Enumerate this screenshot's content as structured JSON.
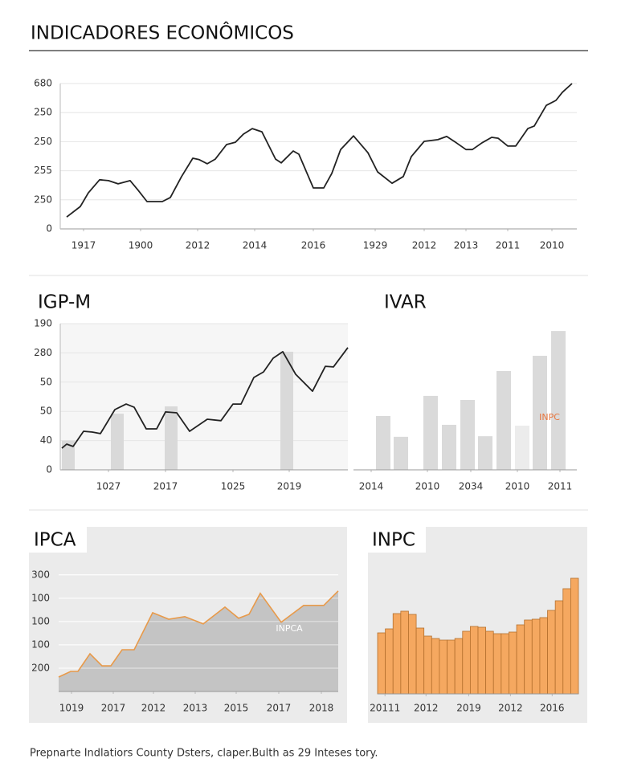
{
  "header": {
    "title": "INDICADORES ECONÔMICOS"
  },
  "footer": {
    "text": "Prepnarte Indlatiors County Dsters, claper.Bulth as 29 Inteses tory."
  },
  "chart_data": [
    {
      "type": "line",
      "color": "#222222",
      "grid": true,
      "x": [
        0.8,
        2.5,
        3.5,
        4.9,
        6,
        7.2,
        8.7,
        9.7,
        10.8,
        12.7,
        13.7,
        15.1,
        16.5,
        17.3,
        18.3,
        19.3,
        20.7,
        21.8,
        22.8,
        23.9,
        25.1,
        26.8,
        27.5,
        29,
        29.7,
        31.5,
        32.8,
        33.8,
        34.9,
        36.5,
        38.3,
        39.5,
        41.3,
        42.7,
        43.7,
        45.3,
        47,
        48.1,
        49.3,
        50.5,
        51.3,
        52.5,
        53.7,
        54.5,
        55.7,
        56.7,
        58.2,
        59,
        60.5,
        61.7,
        62.5,
        63.7
      ],
      "values": [
        0.41,
        0.77,
        1.24,
        1.69,
        1.66,
        1.55,
        1.66,
        1.33,
        0.94,
        0.94,
        1.08,
        1.8,
        2.43,
        2.38,
        2.24,
        2.4,
        2.9,
        2.98,
        3.26,
        3.45,
        3.34,
        2.4,
        2.27,
        2.68,
        2.57,
        1.41,
        1.41,
        1.91,
        2.73,
        3.2,
        2.62,
        1.96,
        1.57,
        1.8,
        2.49,
        3.01,
        3.07,
        3.18,
        2.96,
        2.73,
        2.73,
        2.96,
        3.15,
        3.12,
        2.85,
        2.85,
        3.45,
        3.54,
        4.25,
        4.42,
        4.7,
        5.0
      ],
      "xlim": [
        0,
        64.3
      ],
      "ylim": [
        0,
        5
      ],
      "xticks": [
        {
          "value": 2.9,
          "label": "1917"
        },
        {
          "value": 10,
          "label": "1900"
        },
        {
          "value": 17.1,
          "label": "2012"
        },
        {
          "value": 24.2,
          "label": "2014"
        },
        {
          "value": 31.5,
          "label": "2016"
        },
        {
          "value": 39.2,
          "label": "1929"
        },
        {
          "value": 45.3,
          "label": "2012"
        },
        {
          "value": 50.5,
          "label": "2013"
        },
        {
          "value": 55.7,
          "label": "2011"
        },
        {
          "value": 61.2,
          "label": "2010"
        }
      ],
      "yticks": [
        {
          "value": 0,
          "label": "0"
        },
        {
          "value": 1,
          "label": "250"
        },
        {
          "value": 2,
          "label": "255"
        },
        {
          "value": 3,
          "label": "250"
        },
        {
          "value": 4,
          "label": "250"
        },
        {
          "value": 5,
          "label": "680"
        }
      ]
    },
    {
      "type": "line",
      "title": "IGP-M",
      "color": "#222222",
      "grid": true,
      "x": [
        0.2,
        0.8,
        1.6,
        2.9,
        4,
        5,
        6.8,
        8.2,
        9.2,
        10.7,
        12,
        13.1,
        14.5,
        16.1,
        18.3,
        20,
        21.5,
        22.5,
        24.1,
        25.3,
        26.5,
        27.7,
        29.3,
        31.4,
        33,
        34,
        35.8
      ],
      "values": [
        0.74,
        0.88,
        0.8,
        1.32,
        1.29,
        1.24,
        2.06,
        2.25,
        2.14,
        1.4,
        1.4,
        1.98,
        1.95,
        1.32,
        1.73,
        1.68,
        2.25,
        2.25,
        3.16,
        3.35,
        3.82,
        4.04,
        3.27,
        2.69,
        3.54,
        3.52,
        4.18
      ],
      "bars": {
        "color": "#d9d9d9",
        "x": [
          1,
          7.1,
          13.8,
          28.2
        ],
        "values": [
          1.0,
          1.92,
          2.17,
          4.04
        ]
      },
      "xlim": [
        0,
        35.8
      ],
      "ylim": [
        0,
        5
      ],
      "xticks": [
        {
          "value": 6,
          "label": "1027"
        },
        {
          "value": 13.1,
          "label": "2017"
        },
        {
          "value": 21.5,
          "label": "1025"
        },
        {
          "value": 28.5,
          "label": "2019"
        }
      ],
      "yticks": [
        {
          "value": 0,
          "label": "0"
        },
        {
          "value": 1,
          "label": "40"
        },
        {
          "value": 2,
          "label": "50"
        },
        {
          "value": 3,
          "label": "50"
        },
        {
          "value": 4,
          "label": "280"
        },
        {
          "value": 5,
          "label": "190"
        }
      ]
    },
    {
      "type": "bar",
      "title": "IVAR",
      "annotation": "INPC",
      "annotation_color": "#e8743b",
      "x": [
        3.7,
        5.9,
        9.6,
        11.9,
        14.2,
        16.4,
        18.7,
        21,
        23.2,
        25.5
      ],
      "values": [
        1.84,
        1.13,
        2.53,
        1.54,
        2.39,
        1.15,
        3.38,
        1.51,
        3.9,
        4.75
      ],
      "colors": [
        "#dadada",
        "#dadada",
        "#dadada",
        "#dadada",
        "#dadada",
        "#dadada",
        "#dadada",
        "#ececec",
        "#dadada",
        "#dadada"
      ],
      "xlim": [
        0,
        27.8
      ],
      "ylim": [
        0,
        5
      ],
      "xticks": [
        {
          "value": 2.2,
          "label": "2014"
        },
        {
          "value": 9.2,
          "label": "2010"
        },
        {
          "value": 14.6,
          "label": "2034"
        },
        {
          "value": 20.4,
          "label": "2010"
        },
        {
          "value": 25.7,
          "label": "2011"
        }
      ]
    },
    {
      "type": "area",
      "title": "IPCA",
      "color": "#e89a4a",
      "fill": "#c4c4c4",
      "grid": true,
      "annotation": "INPCA",
      "annotation_color": "#ffffff",
      "x": [
        0,
        1.5,
        2.4,
        3.9,
        5.4,
        6.5,
        7.9,
        9.4,
        11.7,
        13.7,
        15.7,
        18,
        20.7,
        22.4,
        23.7,
        25.1,
        27.7,
        30.5,
        33,
        34.8
      ],
      "values": [
        0.62,
        0.86,
        0.86,
        1.62,
        1.1,
        1.1,
        1.79,
        1.79,
        3.38,
        3.1,
        3.21,
        2.9,
        3.62,
        3.14,
        3.31,
        4.21,
        2.97,
        3.69,
        3.69,
        4.31
      ],
      "xlim": [
        0,
        34.8
      ],
      "ylim": [
        0,
        5.2
      ],
      "xticks": [
        {
          "value": 1.6,
          "label": "1019"
        },
        {
          "value": 6.8,
          "label": "2017"
        },
        {
          "value": 11.8,
          "label": "2012"
        },
        {
          "value": 17,
          "label": "2013"
        },
        {
          "value": 22.1,
          "label": "2015"
        },
        {
          "value": 27.4,
          "label": "2017"
        },
        {
          "value": 32.7,
          "label": "2018"
        }
      ],
      "yticks": [
        {
          "value": 1,
          "label": "200"
        },
        {
          "value": 2,
          "label": "100"
        },
        {
          "value": 3,
          "label": "100"
        },
        {
          "value": 4,
          "label": "100"
        },
        {
          "value": 5,
          "label": "300"
        }
      ]
    },
    {
      "type": "bar",
      "title": "INPC",
      "color": "#f5a860",
      "x": [
        0.5,
        1.5,
        2.5,
        3.5,
        4.5,
        5.5,
        6.5,
        7.5,
        8.5,
        9.5,
        10.5,
        11.5,
        12.5,
        13.5,
        14.5,
        15.5,
        16.5,
        17.5,
        18.5,
        19.5,
        20.5,
        21.5,
        22.5,
        23.5,
        24.5,
        25.5
      ],
      "values": [
        7.6,
        8.1,
        10,
        10.3,
        9.9,
        8.2,
        7.2,
        6.9,
        6.7,
        6.7,
        6.9,
        7.8,
        8.4,
        8.3,
        7.8,
        7.5,
        7.5,
        7.7,
        8.6,
        9.2,
        9.3,
        9.5,
        10.4,
        11.6,
        13.1,
        14.4
      ],
      "xlim": [
        0,
        26
      ],
      "ylim": [
        0,
        15.4
      ],
      "xticks": [
        {
          "value": 0.96,
          "label": "20111"
        },
        {
          "value": 6.27,
          "label": "2012"
        },
        {
          "value": 11.8,
          "label": "2019"
        },
        {
          "value": 17.2,
          "label": "2012"
        },
        {
          "value": 22.6,
          "label": "2016"
        }
      ]
    }
  ]
}
